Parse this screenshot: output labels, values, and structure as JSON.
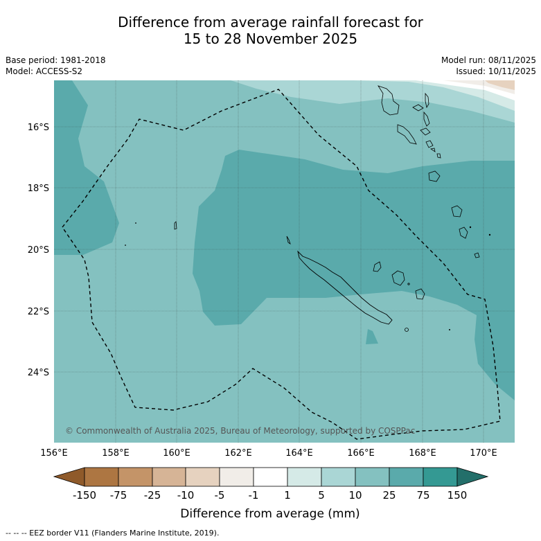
{
  "title": {
    "line1": "Difference from average rainfall forecast for",
    "line2": "15 to 28 November 2025"
  },
  "meta": {
    "base_period": "Base period: 1981-2018",
    "model": "Model: ACCESS-S2",
    "model_run": "Model run: 08/11/2025",
    "issued": "Issued: 10/11/2025"
  },
  "map": {
    "lat_ticks": [
      "16°S",
      "18°S",
      "20°S",
      "22°S",
      "24°S"
    ],
    "lon_ticks": [
      "156°E",
      "158°E",
      "160°E",
      "162°E",
      "164°E",
      "166°E",
      "168°E",
      "170°E"
    ],
    "copyright": "© Commonwealth of Australia 2025, Bureau of Meteorology, supported by COSPPac"
  },
  "colorbar": {
    "labels": [
      "-150",
      "-75",
      "-25",
      "-10",
      "-5",
      "-1",
      "1",
      "5",
      "10",
      "25",
      "75",
      "150"
    ],
    "colors": [
      "#8f5a2a",
      "#ad7642",
      "#c49468",
      "#d6b496",
      "#e6d2bf",
      "#f1ede8",
      "#ffffff",
      "#d5eae7",
      "#aad6d5",
      "#84c1c0",
      "#5aaaab",
      "#349993",
      "#236f6a"
    ],
    "title": "Difference from average (mm)"
  },
  "footer": {
    "legend": "--  --  -- EEZ border V11 (Flanders Marine Institute, 2019)."
  }
}
